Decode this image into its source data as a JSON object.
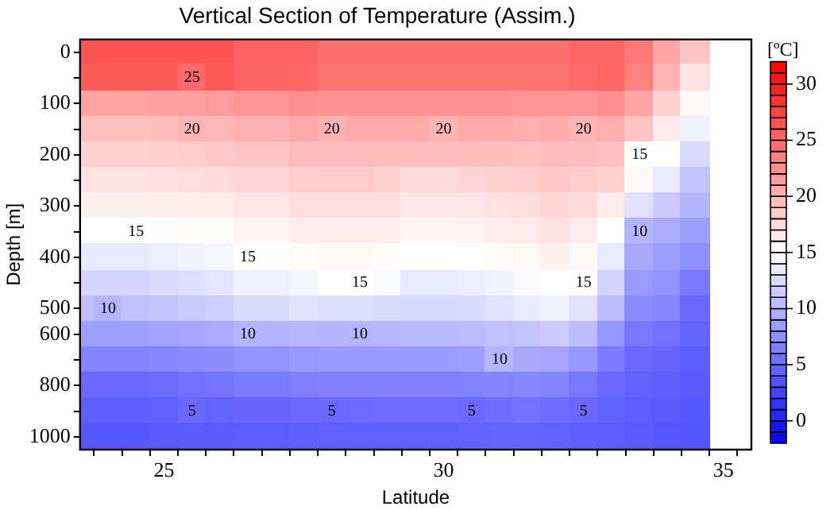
{
  "chart_data": {
    "type": "heatmap",
    "title": "Vertical Section of Temperature (Assim.)",
    "xlabel": "Latitude",
    "ylabel": "Depth [m]",
    "clabel": "[ºC]",
    "categories": [
      null,
      null,
      null,
      "25",
      null,
      null,
      null,
      null,
      null,
      null,
      null,
      null,
      null,
      "30",
      null,
      null,
      null,
      null,
      null,
      null,
      null,
      null,
      null,
      "35",
      null
    ],
    "y_categories": [
      "0",
      null,
      "100",
      null,
      "200",
      null,
      "300",
      null,
      "400",
      null,
      "500",
      "600",
      null,
      "800",
      null,
      "1000"
    ],
    "cells": [
      [
        26.5,
        26.5,
        26.5,
        26.5,
        26.5,
        26.5,
        25.5,
        25.5,
        25.5,
        24.5,
        24.5,
        24.5,
        24.5,
        24.5,
        24.5,
        24.5,
        24.5,
        24.5,
        25.1,
        25.2,
        24,
        21,
        19,
        null,
        null
      ],
      [
        26,
        26,
        26,
        26,
        25,
        26,
        25.3,
        25.3,
        25.2,
        24.3,
        24.3,
        24.3,
        24.3,
        24.3,
        24.3,
        24.3,
        24.3,
        24.3,
        25,
        25.1,
        23.5,
        20,
        17,
        null,
        null
      ],
      [
        21.1,
        21.1,
        21.1,
        21.3,
        21.5,
        21.7,
        22,
        22,
        22.5,
        22.3,
        22.3,
        22.3,
        22.3,
        22.3,
        22.3,
        22.2,
        22,
        22,
        22,
        22.5,
        21,
        18,
        15.5,
        null,
        null
      ],
      [
        19.2,
        19.2,
        19.2,
        19.4,
        20,
        19.8,
        20.2,
        20.2,
        20.8,
        20,
        20.6,
        20.6,
        20.6,
        20,
        20.6,
        20.6,
        20.5,
        20.6,
        20,
        20.5,
        19,
        16.5,
        14,
        null,
        null
      ],
      [
        18,
        18,
        18,
        18.2,
        18.4,
        18.6,
        19,
        19,
        19.6,
        19.5,
        19.5,
        19.5,
        19.5,
        19.5,
        19.5,
        19.4,
        19.2,
        19.5,
        19.5,
        19.3,
        15,
        15,
        12.5,
        null,
        null
      ],
      [
        17,
        17,
        17,
        17.1,
        17.3,
        17.4,
        17.8,
        17.8,
        18.4,
        18.5,
        18.5,
        18,
        17.5,
        17.5,
        17.8,
        18,
        18.2,
        18.6,
        18.5,
        18,
        15.5,
        13.5,
        11,
        null,
        null
      ],
      [
        16,
        16,
        16,
        16.1,
        16.2,
        16.3,
        16.7,
        16.7,
        17.2,
        17.2,
        17.2,
        17.2,
        16.7,
        16.7,
        16.7,
        17,
        17.3,
        17.8,
        17.5,
        16.5,
        13,
        11.5,
        10,
        null,
        null
      ],
      [
        15,
        15,
        15,
        15.1,
        15.2,
        15.2,
        15.7,
        15.7,
        16.2,
        16.3,
        16.3,
        16.3,
        15.7,
        15.7,
        15.8,
        16.2,
        16.5,
        17,
        16.5,
        15,
        10,
        9.5,
        8.5,
        null,
        null
      ],
      [
        13.6,
        13.6,
        13.6,
        13.8,
        14.1,
        14.4,
        15,
        15.1,
        15.3,
        15.5,
        15.5,
        15.3,
        15,
        15,
        15,
        15.3,
        15.6,
        16,
        15.5,
        13.5,
        9.2,
        8.5,
        7.5,
        null,
        null
      ],
      [
        12.2,
        12.2,
        12.2,
        12.5,
        12.8,
        13.2,
        14,
        14,
        14.3,
        15,
        15,
        14.5,
        13.5,
        13.5,
        13.8,
        14.2,
        14.6,
        15,
        15,
        12,
        8.2,
        7.8,
        6,
        null,
        null
      ],
      [
        10.8,
        10,
        10.8,
        11.1,
        11.4,
        11.8,
        12.6,
        12.6,
        13,
        12.8,
        12.8,
        12.6,
        12.3,
        12.3,
        12.5,
        13,
        13.5,
        14,
        13,
        10.5,
        7.3,
        7,
        5,
        null,
        null
      ],
      [
        8.6,
        8.6,
        8.6,
        8.8,
        9,
        9.3,
        10,
        9.9,
        10.2,
        10.1,
        10,
        10.2,
        10.3,
        10.3,
        10.5,
        10.7,
        11,
        11.5,
        10.5,
        8,
        6,
        5.5,
        4.6,
        null,
        null
      ],
      [
        6.8,
        6.8,
        6.8,
        7,
        7.2,
        7.4,
        7.8,
        7.8,
        8.1,
        8.2,
        8.2,
        8.2,
        8.3,
        8.3,
        8.5,
        10,
        9.2,
        9,
        8,
        6.2,
        5,
        4.8,
        4.2,
        null,
        null
      ],
      [
        5,
        5,
        5,
        5.2,
        5.5,
        5.7,
        6.1,
        6.1,
        6.4,
        6.6,
        6.6,
        6.5,
        6.5,
        6.5,
        6.7,
        6.8,
        7,
        6.8,
        6,
        5,
        4.5,
        4.3,
        4,
        null,
        null
      ],
      [
        4.3,
        4.3,
        4.3,
        4.4,
        5,
        4.6,
        4.8,
        4.8,
        5,
        5,
        5.1,
        5.2,
        5.2,
        5.2,
        5,
        5.3,
        5.5,
        5.2,
        5,
        4.5,
        4.2,
        4,
        3.8,
        null,
        null
      ],
      [
        3.8,
        3.8,
        3.8,
        3.9,
        4,
        4,
        4.1,
        4.1,
        4.3,
        4.4,
        4.4,
        4.4,
        4.4,
        4.4,
        4.5,
        4.6,
        4.6,
        4.5,
        4.3,
        4.1,
        3.9,
        3.7,
        3.6,
        null,
        null
      ]
    ],
    "cell_labels": [
      [
        null,
        null,
        null,
        null,
        null,
        null,
        null,
        null,
        null,
        null,
        null,
        null,
        null,
        null,
        null,
        null,
        null,
        null,
        null,
        null,
        null,
        null,
        null,
        null,
        null
      ],
      [
        null,
        null,
        null,
        null,
        "25",
        null,
        null,
        null,
        null,
        null,
        null,
        null,
        null,
        null,
        null,
        null,
        null,
        null,
        null,
        null,
        null,
        null,
        null,
        null,
        null
      ],
      [
        null,
        null,
        null,
        null,
        null,
        null,
        null,
        null,
        null,
        null,
        null,
        null,
        null,
        null,
        null,
        null,
        null,
        null,
        null,
        null,
        null,
        null,
        null,
        null,
        null
      ],
      [
        null,
        null,
        null,
        null,
        "20",
        null,
        null,
        null,
        null,
        "20",
        null,
        null,
        null,
        "20",
        null,
        null,
        null,
        null,
        "20",
        null,
        null,
        null,
        null,
        null,
        null
      ],
      [
        null,
        null,
        null,
        null,
        null,
        null,
        null,
        null,
        null,
        null,
        null,
        null,
        null,
        null,
        null,
        null,
        null,
        null,
        null,
        null,
        "15",
        null,
        null,
        null,
        null
      ],
      [
        null,
        null,
        null,
        null,
        null,
        null,
        null,
        null,
        null,
        null,
        null,
        null,
        null,
        null,
        null,
        null,
        null,
        null,
        null,
        null,
        null,
        null,
        null,
        null,
        null
      ],
      [
        null,
        null,
        null,
        null,
        null,
        null,
        null,
        null,
        null,
        null,
        null,
        null,
        null,
        null,
        null,
        null,
        null,
        null,
        null,
        null,
        null,
        null,
        null,
        null,
        null
      ],
      [
        null,
        null,
        "15",
        null,
        null,
        null,
        null,
        null,
        null,
        null,
        null,
        null,
        null,
        null,
        null,
        null,
        null,
        null,
        null,
        null,
        "10",
        null,
        null,
        null,
        null
      ],
      [
        null,
        null,
        null,
        null,
        null,
        null,
        "15",
        null,
        null,
        null,
        null,
        null,
        null,
        null,
        null,
        null,
        null,
        null,
        null,
        null,
        null,
        null,
        null,
        null,
        null
      ],
      [
        null,
        null,
        null,
        null,
        null,
        null,
        null,
        null,
        null,
        null,
        "15",
        null,
        null,
        null,
        null,
        null,
        null,
        null,
        "15",
        null,
        null,
        null,
        null,
        null,
        null
      ],
      [
        null,
        "10",
        null,
        null,
        null,
        null,
        null,
        null,
        null,
        null,
        null,
        null,
        null,
        null,
        null,
        null,
        null,
        null,
        null,
        null,
        null,
        null,
        null,
        null,
        null
      ],
      [
        null,
        null,
        null,
        null,
        null,
        null,
        "10",
        null,
        null,
        null,
        "10",
        null,
        null,
        null,
        null,
        null,
        null,
        null,
        null,
        null,
        null,
        null,
        null,
        null,
        null
      ],
      [
        null,
        null,
        null,
        null,
        null,
        null,
        null,
        null,
        null,
        null,
        null,
        null,
        null,
        null,
        null,
        "10",
        null,
        null,
        null,
        null,
        null,
        null,
        null,
        null,
        null
      ],
      [
        null,
        null,
        null,
        null,
        null,
        null,
        null,
        null,
        null,
        null,
        null,
        null,
        null,
        null,
        null,
        null,
        null,
        null,
        null,
        null,
        null,
        null,
        null,
        null,
        null
      ],
      [
        null,
        null,
        null,
        null,
        "5",
        null,
        null,
        null,
        null,
        "5",
        null,
        null,
        null,
        null,
        "5",
        null,
        null,
        null,
        "5",
        null,
        null,
        null,
        null,
        null,
        null
      ],
      [
        null,
        null,
        null,
        null,
        null,
        null,
        null,
        null,
        null,
        null,
        null,
        null,
        null,
        null,
        null,
        null,
        null,
        null,
        null,
        null,
        null,
        null,
        null,
        null,
        null
      ]
    ],
    "clim": [
      -2,
      32
    ],
    "cticks": [
      0,
      5,
      10,
      15,
      20,
      25,
      30
    ]
  }
}
